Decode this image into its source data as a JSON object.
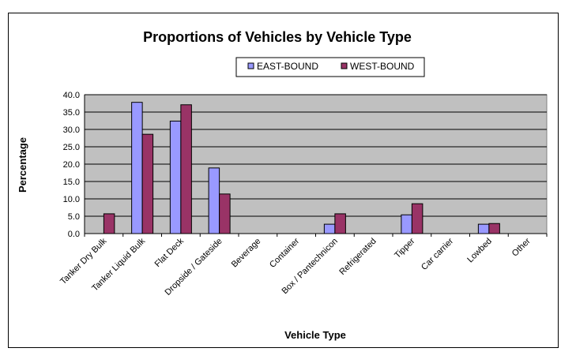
{
  "chart_data": {
    "type": "bar",
    "title": "Proportions of Vehicles by Vehicle Type",
    "xlabel": "Vehicle Type",
    "ylabel": "Percentage",
    "ylim": [
      0,
      40
    ],
    "yticks": [
      "0.0",
      "5.0",
      "10.0",
      "15.0",
      "20.0",
      "25.0",
      "30.0",
      "35.0",
      "40.0"
    ],
    "grid": true,
    "legend_position": "top",
    "categories": [
      "Tanker Dry Bulk",
      "Tanker Liquid Bulk",
      "Flat Deck",
      "Dropside / Gateside",
      "Beverage",
      "Container",
      "Box / Pantechnicon",
      "Refrigerated",
      "Tipper",
      "Car carrier",
      "Lowbed",
      "Other"
    ],
    "series": [
      {
        "name": "EAST-BOUND",
        "color": "#9999ff",
        "values": [
          0,
          37.8,
          32.4,
          18.9,
          0,
          0,
          2.7,
          0,
          5.4,
          0,
          2.7,
          0
        ]
      },
      {
        "name": "WEST-BOUND",
        "color": "#993366",
        "values": [
          5.7,
          28.6,
          37.1,
          11.4,
          0,
          0,
          5.7,
          0,
          8.6,
          0,
          2.9,
          0
        ]
      }
    ],
    "plot_bg": "#c0c0c0"
  }
}
